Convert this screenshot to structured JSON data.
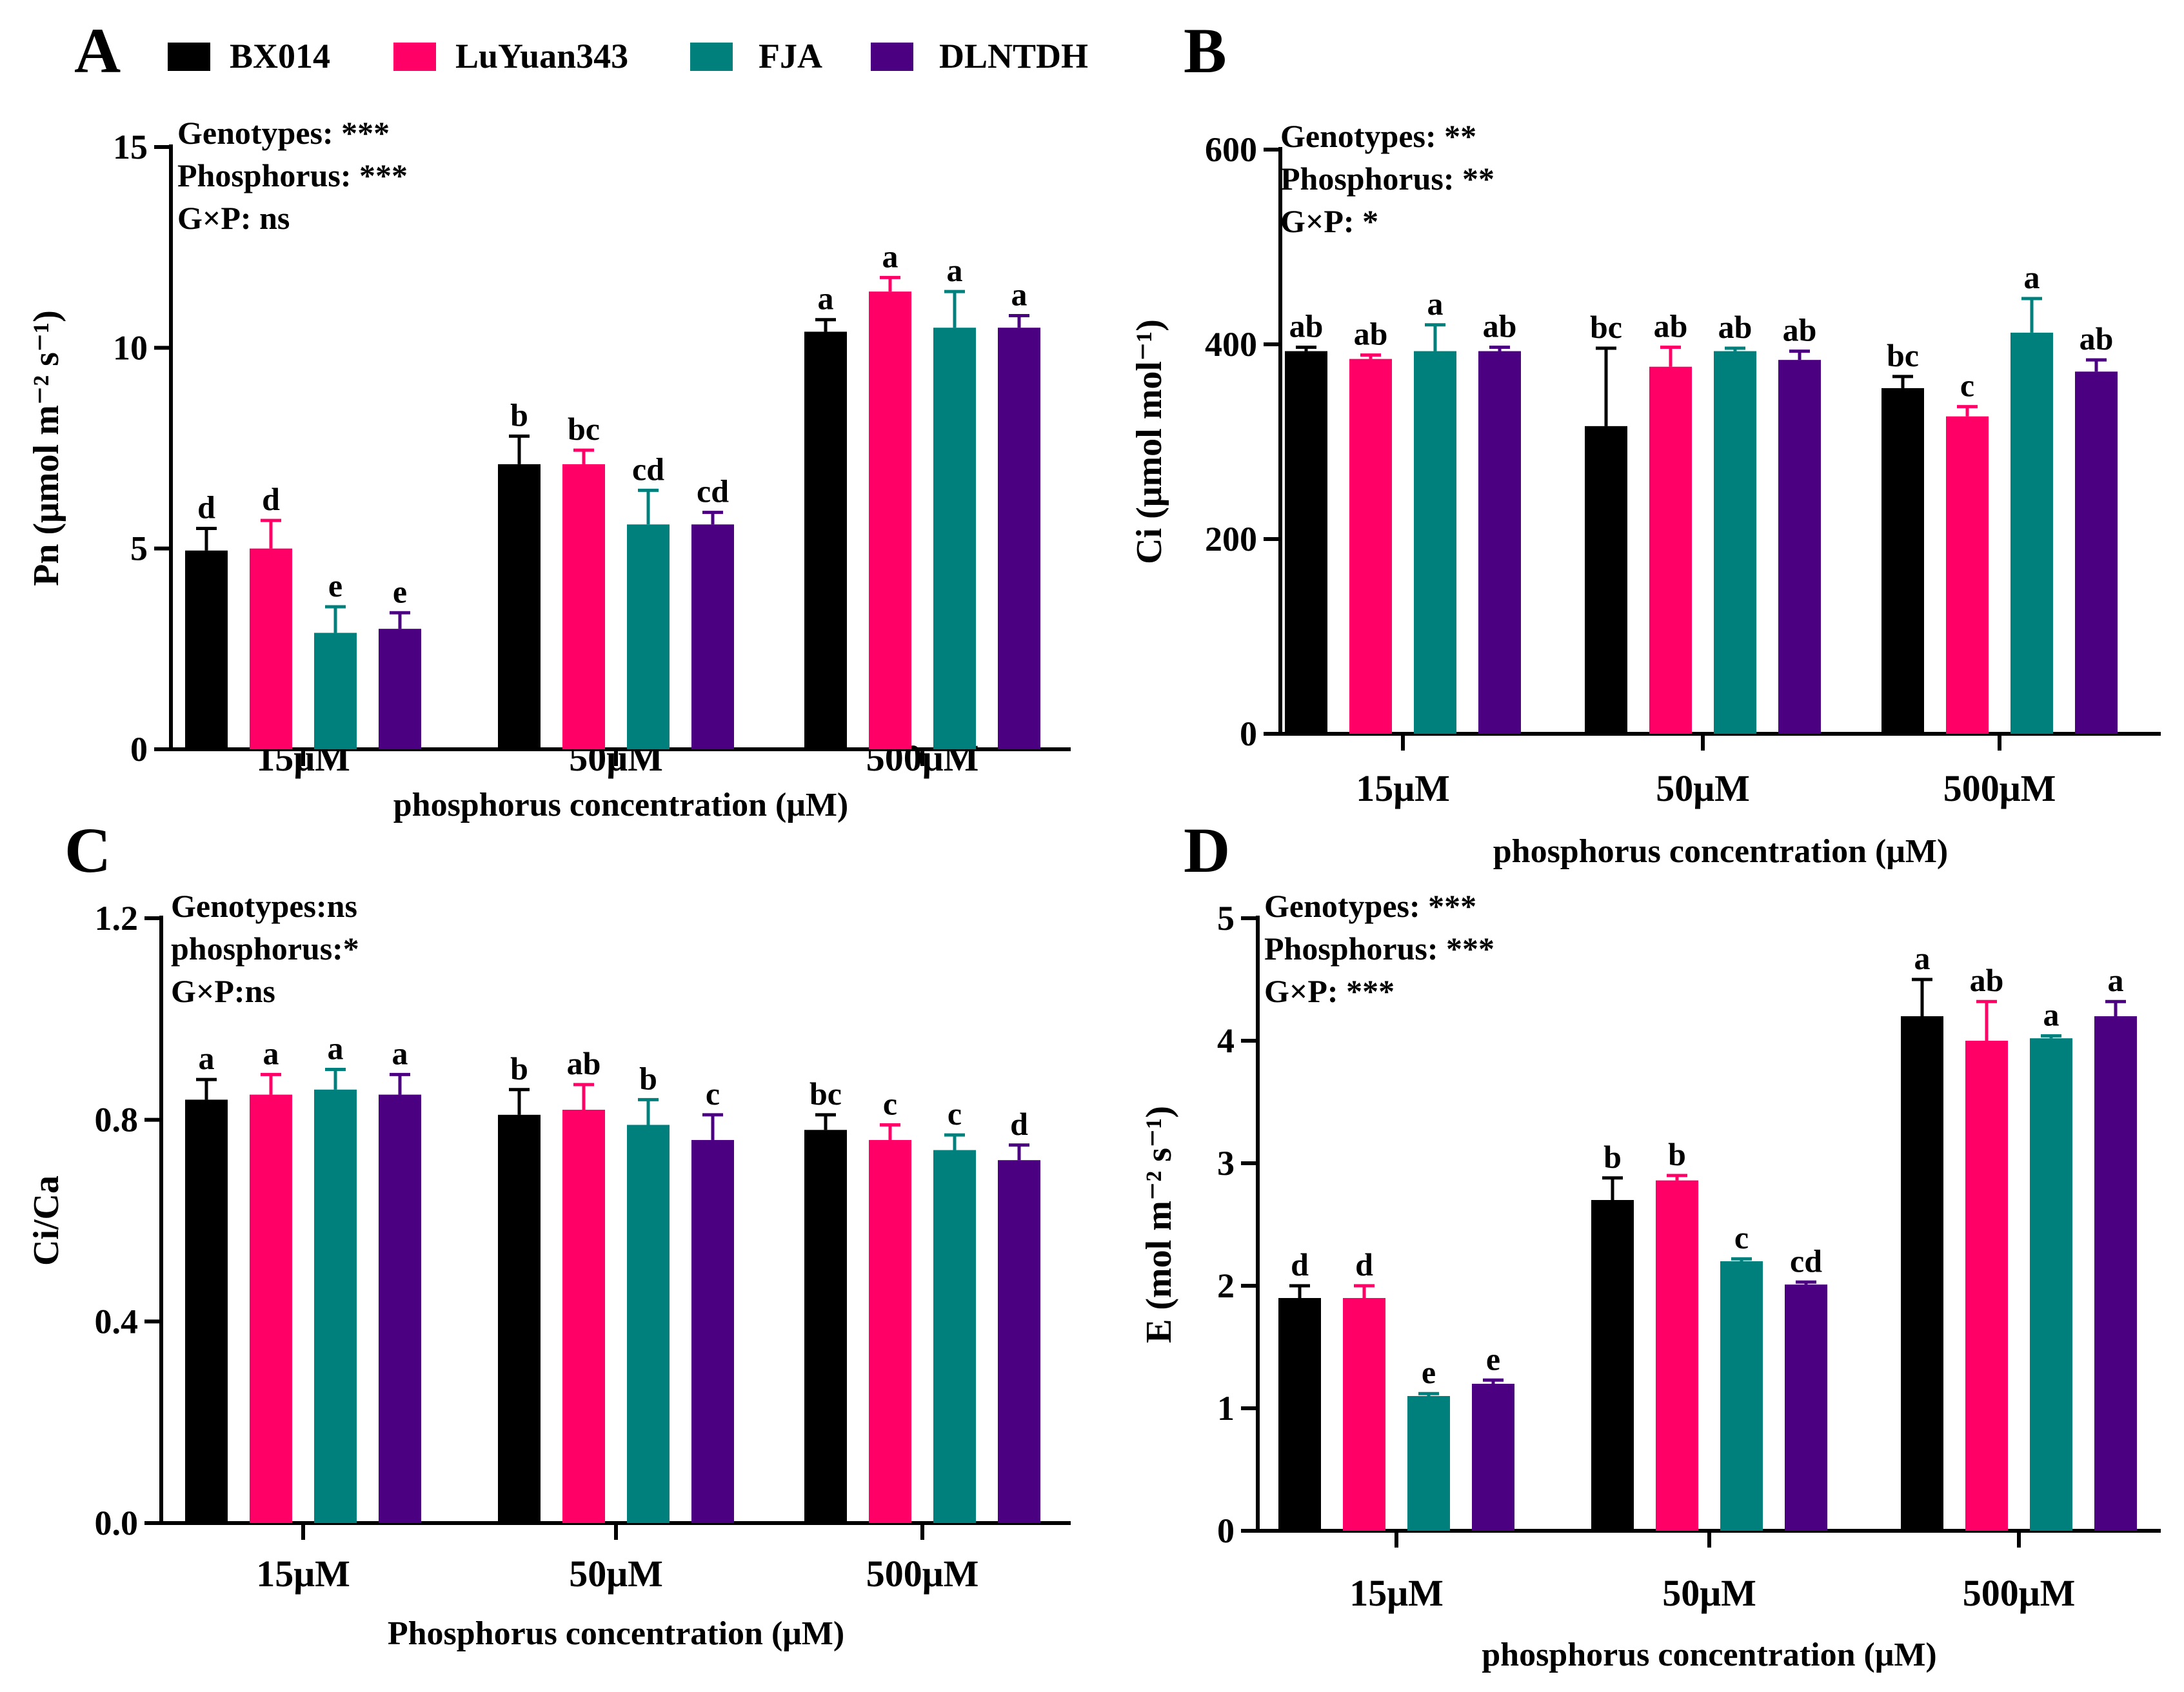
{
  "series_colors": {
    "BX014": "#000000",
    "LuYuan343": "#ff0066",
    "FJA": "#00807c",
    "DLNTDH": "#4b0082"
  },
  "legend": [
    "BX014",
    "LuYuan343",
    "FJA",
    "DLNTDH"
  ],
  "chart_data": [
    {
      "panel": "A",
      "type": "bar",
      "categories": [
        "15μM",
        "50μM",
        "500μM"
      ],
      "xlabel": "phosphorus concentration (μM)",
      "ylabel": "Pn (μmol m⁻² s⁻¹)",
      "ylim": [
        0,
        15
      ],
      "yticks": [
        "0",
        "5",
        "10",
        "15"
      ],
      "stats": [
        "Genotypes:  ***",
        "Phosphorus:  ***",
        "G×P: ns"
      ],
      "series": [
        {
          "name": "BX014",
          "values": [
            4.95,
            7.1,
            10.4
          ],
          "errors": [
            0.55,
            0.7,
            0.3
          ],
          "letters": [
            "d",
            "b",
            "a"
          ]
        },
        {
          "name": "LuYuan343",
          "values": [
            5.0,
            7.1,
            11.4
          ],
          "errors": [
            0.7,
            0.35,
            0.35
          ],
          "letters": [
            "d",
            "bc",
            "a"
          ]
        },
        {
          "name": "FJA",
          "values": [
            2.9,
            5.6,
            10.5
          ],
          "errors": [
            0.65,
            0.85,
            0.9
          ],
          "letters": [
            "e",
            "cd",
            "a"
          ]
        },
        {
          "name": "DLNTDH",
          "values": [
            3.0,
            5.6,
            10.5
          ],
          "errors": [
            0.4,
            0.3,
            0.3
          ],
          "letters": [
            "e",
            "cd",
            "a"
          ]
        }
      ]
    },
    {
      "panel": "B",
      "type": "bar",
      "categories": [
        "15μM",
        "50μM",
        "500μM"
      ],
      "xlabel": "phosphorus concentration (μM)",
      "ylabel": "Ci (μmol mol⁻¹)",
      "ylim": [
        0,
        600
      ],
      "yticks": [
        "0",
        "200",
        "400",
        "600"
      ],
      "stats": [
        "Genotypes:  **",
        "Phosphorus:  **",
        "G×P: *"
      ],
      "series": [
        {
          "name": "BX014",
          "values": [
            393,
            316,
            355
          ],
          "errors": [
            4,
            80,
            12
          ],
          "letters": [
            "ab",
            "bc",
            "bc"
          ]
        },
        {
          "name": "LuYuan343",
          "values": [
            385,
            377,
            326
          ],
          "errors": [
            4,
            20,
            10
          ],
          "letters": [
            "ab",
            "ab",
            "c"
          ]
        },
        {
          "name": "FJA",
          "values": [
            393,
            393,
            412
          ],
          "errors": [
            27,
            3,
            35
          ],
          "letters": [
            "a",
            "ab",
            "a"
          ]
        },
        {
          "name": "DLNTDH",
          "values": [
            393,
            384,
            372
          ],
          "errors": [
            4,
            9,
            12
          ],
          "letters": [
            "ab",
            "ab",
            "ab"
          ]
        }
      ]
    },
    {
      "panel": "C",
      "type": "bar",
      "categories": [
        "15μM",
        "50μM",
        "500μM"
      ],
      "xlabel": "Phosphorus concentration (μM)",
      "ylabel": "Ci/Ca",
      "ylim": [
        0,
        1.2
      ],
      "yticks": [
        "0.0",
        "0.4",
        "0.8",
        "1.2"
      ],
      "stats": [
        "Genotypes:ns",
        "phosphorus:*",
        "G×P:ns"
      ],
      "series": [
        {
          "name": "BX014",
          "values": [
            0.84,
            0.81,
            0.78
          ],
          "errors": [
            0.04,
            0.05,
            0.03
          ],
          "letters": [
            "a",
            "b",
            "bc"
          ]
        },
        {
          "name": "LuYuan343",
          "values": [
            0.85,
            0.82,
            0.76
          ],
          "errors": [
            0.04,
            0.05,
            0.03
          ],
          "letters": [
            "a",
            "ab",
            "c"
          ]
        },
        {
          "name": "FJA",
          "values": [
            0.86,
            0.79,
            0.74
          ],
          "errors": [
            0.04,
            0.05,
            0.03
          ],
          "letters": [
            "a",
            "b",
            "c"
          ]
        },
        {
          "name": "DLNTDH",
          "values": [
            0.85,
            0.76,
            0.72
          ],
          "errors": [
            0.04,
            0.05,
            0.03
          ],
          "letters": [
            "a",
            "c",
            "d"
          ]
        }
      ]
    },
    {
      "panel": "D",
      "type": "bar",
      "categories": [
        "15μM",
        "50μM",
        "500μM"
      ],
      "xlabel": "phosphorus concentration (μM)",
      "ylabel": "E (mol m⁻² s⁻¹)",
      "ylim": [
        0,
        5
      ],
      "yticks": [
        "0",
        "1",
        "2",
        "3",
        "4",
        "5"
      ],
      "stats": [
        "Genotypes:  ***",
        "Phosphorus:  ***",
        "G×P: ***"
      ],
      "series": [
        {
          "name": "BX014",
          "values": [
            1.9,
            2.7,
            4.2
          ],
          "errors": [
            0.1,
            0.18,
            0.3
          ],
          "letters": [
            "d",
            "b",
            "a"
          ]
        },
        {
          "name": "LuYuan343",
          "values": [
            1.9,
            2.86,
            4.0
          ],
          "errors": [
            0.1,
            0.04,
            0.32
          ],
          "letters": [
            "d",
            "b",
            "ab"
          ]
        },
        {
          "name": "FJA",
          "values": [
            1.1,
            2.2,
            4.02
          ],
          "errors": [
            0.02,
            0.02,
            0.02
          ],
          "letters": [
            "e",
            "c",
            "a"
          ]
        },
        {
          "name": "DLNTDH",
          "values": [
            1.2,
            2.01,
            4.2
          ],
          "errors": [
            0.03,
            0.02,
            0.12
          ],
          "letters": [
            "e",
            "cd",
            "a"
          ]
        }
      ]
    }
  ]
}
